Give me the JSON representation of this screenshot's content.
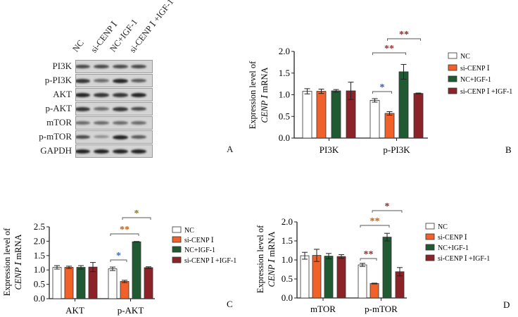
{
  "blot": {
    "lanes": [
      "NC",
      "si-CENP Ⅰ",
      "NC+IGF-1",
      "si-CENP Ⅰ +IGF-1"
    ],
    "rows": [
      "PI3K",
      "p-PI3K",
      "AKT",
      "p-AKT",
      "mTOR",
      "p-mTOR",
      "GAPDH"
    ],
    "panel_letter": "A"
  },
  "colors": {
    "NC": "#ffffff",
    "si": "#f0622a",
    "igf": "#1f5a32",
    "si_igf": "#8b2329"
  },
  "chart_data": [
    {
      "type": "bar",
      "panel_letter": "B",
      "ylabel_line1": "Expression level of",
      "ylabel_italic": "CENP Ⅰ",
      "ylabel_suffix": " mRNA",
      "ylim": [
        0,
        2.0
      ],
      "yticks": [
        "0.0",
        "0.5",
        "1.0",
        "1.5",
        "2.0"
      ],
      "categories": [
        "PI3K",
        "p-PI3K"
      ],
      "legend": [
        "NC",
        "si-CENP Ⅰ",
        "NC+IGF-1",
        "si-CENP Ⅰ +IGF-1"
      ],
      "legend_position": "right",
      "series": [
        {
          "name": "NC",
          "values": [
            1.08,
            0.87
          ],
          "errors": [
            0.06,
            0.04
          ]
        },
        {
          "name": "si-CENP Ⅰ",
          "values": [
            1.08,
            0.57
          ],
          "errors": [
            0.05,
            0.04
          ]
        },
        {
          "name": "NC+IGF-1",
          "values": [
            1.09,
            1.53
          ],
          "errors": [
            0.03,
            0.17
          ]
        },
        {
          "name": "si-CENP Ⅰ +IGF-1",
          "values": [
            1.09,
            1.03
          ],
          "errors": [
            0.2,
            0.01
          ]
        }
      ],
      "annotations": [
        {
          "text": "*",
          "category": 1,
          "from": 0,
          "to": 1,
          "color": "#3b55a0"
        },
        {
          "text": "**",
          "category": 1,
          "from": 0,
          "to": 2,
          "color": "#a0302a"
        },
        {
          "text": "**",
          "category": 1,
          "from": 1,
          "to": 3,
          "color": "#8a2a2a"
        }
      ]
    },
    {
      "type": "bar",
      "panel_letter": "C",
      "ylabel_line1": "Expression level of",
      "ylabel_italic": "CENP Ⅰ",
      "ylabel_suffix": " mRNA",
      "ylim": [
        0,
        2.5
      ],
      "yticks": [
        "0.0",
        "0.5",
        "1.0",
        "1.5",
        "2.0",
        "2.5"
      ],
      "categories": [
        "AKT",
        "p-AKT"
      ],
      "legend": [
        "NC",
        "si-CENP Ⅰ",
        "NC+IGF-1",
        "si-CENP Ⅰ +IGF-1"
      ],
      "legend_position": "right",
      "series": [
        {
          "name": "NC",
          "values": [
            1.09,
            1.04
          ],
          "errors": [
            0.06,
            0.06
          ]
        },
        {
          "name": "si-CENP Ⅰ",
          "values": [
            1.09,
            0.6
          ],
          "errors": [
            0.04,
            0.04
          ]
        },
        {
          "name": "NC+IGF-1",
          "values": [
            1.09,
            1.98
          ],
          "errors": [
            0.06,
            0.01
          ]
        },
        {
          "name": "si-CENP Ⅰ +IGF-1",
          "values": [
            1.1,
            1.08
          ],
          "errors": [
            0.16,
            0.03
          ]
        }
      ],
      "annotations": [
        {
          "text": "*",
          "category": 1,
          "from": 0,
          "to": 1,
          "color": "#3b6fb0"
        },
        {
          "text": "**",
          "category": 1,
          "from": 0,
          "to": 2,
          "color": "#b5651d"
        },
        {
          "text": "*",
          "category": 1,
          "from": 1,
          "to": 3,
          "color": "#8a7a10"
        }
      ]
    },
    {
      "type": "bar",
      "panel_letter": "D",
      "ylabel_line1": "Expression level of",
      "ylabel_italic": "CENP Ⅰ",
      "ylabel_suffix": " mRNA",
      "ylim": [
        0,
        2.0
      ],
      "yticks": [
        "0.0",
        "0.5",
        "1.0",
        "1.5",
        "2.0"
      ],
      "categories": [
        "mTOR",
        "p-mTOR"
      ],
      "legend": [
        "NC",
        "si-CENP Ⅰ",
        "NC+IGF-1",
        "si-CENP Ⅰ +IGF-1"
      ],
      "legend_position": "right",
      "series": [
        {
          "name": "NC",
          "values": [
            1.11,
            0.87
          ],
          "errors": [
            0.09,
            0.04
          ]
        },
        {
          "name": "si-CENP Ⅰ",
          "values": [
            1.12,
            0.38
          ],
          "errors": [
            0.16,
            0.01
          ]
        },
        {
          "name": "NC+IGF-1",
          "values": [
            1.1,
            1.6
          ],
          "errors": [
            0.07,
            0.1
          ]
        },
        {
          "name": "si-CENP Ⅰ +IGF-1",
          "values": [
            1.09,
            0.69
          ],
          "errors": [
            0.05,
            0.11
          ]
        }
      ],
      "annotations": [
        {
          "text": "**",
          "category": 1,
          "from": 0,
          "to": 1,
          "color": "#8b2a2a"
        },
        {
          "text": "**",
          "category": 1,
          "from": 0,
          "to": 2,
          "color": "#b5651d"
        },
        {
          "text": "*",
          "category": 1,
          "from": 1,
          "to": 3,
          "color": "#8b2a2a"
        }
      ]
    }
  ]
}
